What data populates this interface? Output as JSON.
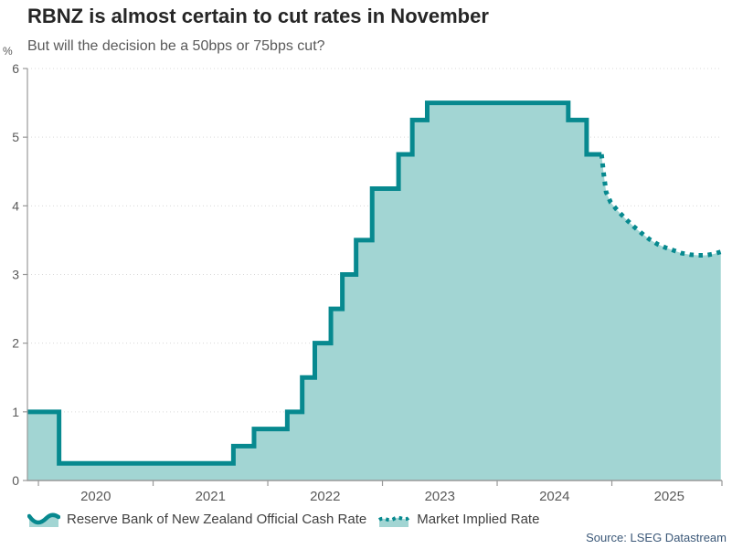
{
  "chart_data": {
    "type": "area",
    "title": "RBNZ is almost certain to cut rates in November",
    "subtitle": "But will the decision be a 50bps or 75bps cut?",
    "ylabel": "%",
    "xlim": [
      2019.904,
      2025.96
    ],
    "ylim": [
      0,
      6
    ],
    "y_ticks": [
      0,
      1,
      2,
      3,
      4,
      5,
      6
    ],
    "x_tick_years": [
      2020,
      2021,
      2022,
      2023,
      2024,
      2025
    ],
    "grid": "dotted-horizontal",
    "legend_position": "bottom",
    "series": [
      {
        "name": "Reserve Bank of New Zealand Official Cash Rate",
        "style": "solid-step",
        "points": [
          [
            2019.9,
            1.0
          ],
          [
            2020.18,
            0.25
          ],
          [
            2021.7,
            0.5
          ],
          [
            2021.88,
            0.75
          ],
          [
            2022.17,
            1.0
          ],
          [
            2022.3,
            1.5
          ],
          [
            2022.41,
            2.0
          ],
          [
            2022.55,
            2.5
          ],
          [
            2022.65,
            3.0
          ],
          [
            2022.77,
            3.5
          ],
          [
            2022.91,
            4.25
          ],
          [
            2023.14,
            4.75
          ],
          [
            2023.26,
            5.25
          ],
          [
            2023.39,
            5.5
          ],
          [
            2024.62,
            5.25
          ],
          [
            2024.78,
            4.75
          ],
          [
            2024.91,
            4.75
          ]
        ]
      },
      {
        "name": "Market Implied Rate",
        "style": "dotted",
        "points": [
          [
            2024.91,
            4.75
          ],
          [
            2024.93,
            4.45
          ],
          [
            2024.95,
            4.2
          ],
          [
            2024.99,
            4.05
          ],
          [
            2025.05,
            3.93
          ],
          [
            2025.12,
            3.81
          ],
          [
            2025.19,
            3.7
          ],
          [
            2025.26,
            3.6
          ],
          [
            2025.33,
            3.51
          ],
          [
            2025.4,
            3.44
          ],
          [
            2025.47,
            3.39
          ],
          [
            2025.54,
            3.35
          ],
          [
            2025.61,
            3.31
          ],
          [
            2025.68,
            3.29
          ],
          [
            2025.75,
            3.28
          ],
          [
            2025.82,
            3.28
          ],
          [
            2025.89,
            3.3
          ],
          [
            2025.95,
            3.33
          ]
        ]
      }
    ],
    "colors": {
      "line": "#07898f",
      "fill": "#a2d5d3",
      "axis": "#999999",
      "grid": "#d9d9d9",
      "title_text": "#262626",
      "tick_text": "#595959",
      "source_text": "#3b5878"
    },
    "source": "Source: LSEG Datastream"
  }
}
